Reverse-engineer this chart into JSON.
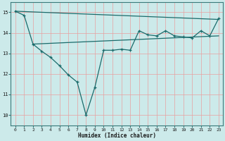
{
  "xlabel": "Humidex (Indice chaleur)",
  "background_color": "#cceaea",
  "grid_color": "#e8a0a0",
  "line_color": "#1a6b6b",
  "xlim": [
    -0.5,
    23.5
  ],
  "ylim": [
    9.5,
    15.5
  ],
  "yticks": [
    10,
    11,
    12,
    13,
    14,
    15
  ],
  "xticks": [
    0,
    1,
    2,
    3,
    4,
    5,
    6,
    7,
    8,
    9,
    10,
    11,
    12,
    13,
    14,
    15,
    16,
    17,
    18,
    19,
    20,
    21,
    22,
    23
  ],
  "line1_x": [
    0,
    1,
    2,
    3,
    4,
    5,
    6,
    7,
    8,
    9,
    10,
    11,
    12,
    13,
    14,
    15,
    16,
    17,
    18,
    19,
    20,
    21,
    22,
    23
  ],
  "line1_y": [
    15.05,
    14.85,
    13.45,
    13.1,
    12.8,
    12.4,
    11.95,
    11.6,
    10.0,
    11.35,
    13.15,
    13.15,
    13.2,
    13.15,
    14.1,
    13.9,
    13.85,
    14.1,
    13.85,
    13.8,
    13.75,
    14.1,
    13.85,
    14.7
  ],
  "line2_x": [
    0,
    23
  ],
  "line2_y": [
    15.05,
    14.65
  ],
  "line3_x": [
    2,
    23
  ],
  "line3_y": [
    13.45,
    13.85
  ]
}
